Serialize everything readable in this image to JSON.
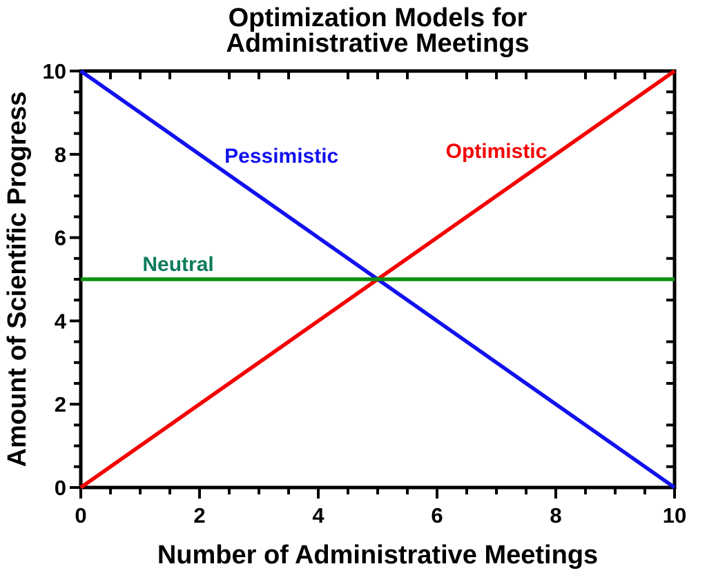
{
  "figure": {
    "title_line1": "Optimization Models for",
    "title_line2": "Administrative Meetings"
  },
  "chart_data": {
    "type": "line",
    "title": "Optimization Models for Administrative Meetings",
    "xlabel": "Number of Administrative Meetings",
    "ylabel": "Amount of Scientific Progress",
    "xlim": [
      0,
      10
    ],
    "ylim": [
      0,
      10
    ],
    "x_major_ticks": [
      0,
      2,
      4,
      6,
      8,
      10
    ],
    "y_major_ticks": [
      0,
      2,
      4,
      6,
      8,
      10
    ],
    "x_tick_labels": [
      "0",
      "2",
      "4",
      "6",
      "8",
      "10"
    ],
    "y_tick_labels": [
      "0",
      "2",
      "4",
      "6",
      "8",
      "10"
    ],
    "minor_tick_interval": 0.5,
    "grid": false,
    "legend": "inline-labels",
    "axis_color": "#000000",
    "background": "#ffffff",
    "series": [
      {
        "name": "Pessimistic",
        "color": "#1111ee",
        "label_color": "#1111ee",
        "x": [
          0,
          10
        ],
        "y": [
          10,
          0
        ],
        "label_x": 3.38,
        "label_y": 7.98
      },
      {
        "name": "Optimistic",
        "color": "#f50000",
        "label_color": "#f50000",
        "x": [
          0,
          10
        ],
        "y": [
          0,
          10
        ],
        "label_x": 7.0,
        "label_y": 8.1
      },
      {
        "name": "Neutral",
        "color": "#0d9010",
        "label_color": "#0e7c5c",
        "x": [
          0,
          10
        ],
        "y": [
          5,
          5
        ],
        "label_x": 1.64,
        "label_y": 5.38
      }
    ]
  }
}
